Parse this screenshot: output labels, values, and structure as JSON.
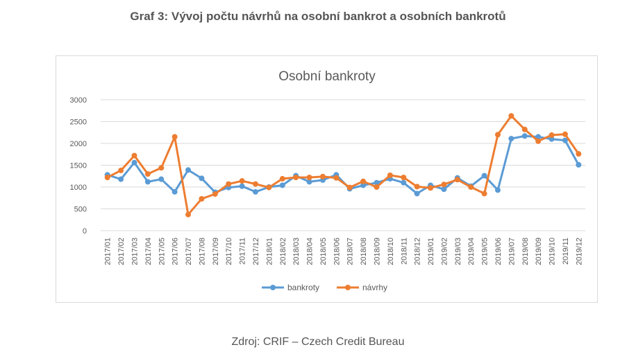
{
  "page": {
    "heading": "Graf 3: Vývoj počtu návrhů na osobní bankrot a osobních bankrotů",
    "source": "Zdroj: CRIF – Czech Credit Bureau"
  },
  "chart_data": {
    "type": "line",
    "title": "Osobní bankroty",
    "xlabel": "",
    "ylabel": "",
    "ylim": [
      0,
      3000
    ],
    "yticks": [
      "0",
      "500",
      "1000",
      "1500",
      "2000",
      "2500",
      "3000"
    ],
    "grid": true,
    "legend_position": "bottom",
    "x": [
      "2017/01",
      "2017/02",
      "2017/03",
      "2017/04",
      "2017/05",
      "2017/06",
      "2017/07",
      "2017/08",
      "2017/09",
      "2017/10",
      "2017/11",
      "2017/12",
      "2018/01",
      "2018/02",
      "2018/03",
      "2018/04",
      "2018/05",
      "2018/06",
      "2018/07",
      "2018/08",
      "2018/09",
      "2018/10",
      "2018/11",
      "2018/12",
      "2019/01",
      "2019/02",
      "2019/03",
      "2019/04",
      "2019/05",
      "2019/06",
      "2019/07",
      "2019/08",
      "2019/09",
      "2019/10",
      "2019/11",
      "2019/12"
    ],
    "series": [
      {
        "name": "bankroty",
        "color": "#5b9bd5",
        "values": [
          1280,
          1180,
          1560,
          1120,
          1180,
          890,
          1390,
          1200,
          880,
          990,
          1020,
          890,
          1000,
          1040,
          1260,
          1120,
          1160,
          1280,
          960,
          1040,
          1100,
          1190,
          1100,
          850,
          1040,
          950,
          1210,
          1020,
          1260,
          930,
          2110,
          2170,
          2150,
          2100,
          2070,
          1510
        ]
      },
      {
        "name": "návrhy",
        "color": "#ed7d31",
        "values": [
          1220,
          1380,
          1720,
          1300,
          1440,
          2150,
          370,
          730,
          840,
          1070,
          1140,
          1070,
          990,
          1190,
          1220,
          1220,
          1240,
          1210,
          990,
          1130,
          1000,
          1270,
          1220,
          1010,
          980,
          1060,
          1170,
          1000,
          850,
          2200,
          2630,
          2320,
          2050,
          2190,
          2210,
          1760
        ]
      }
    ]
  }
}
